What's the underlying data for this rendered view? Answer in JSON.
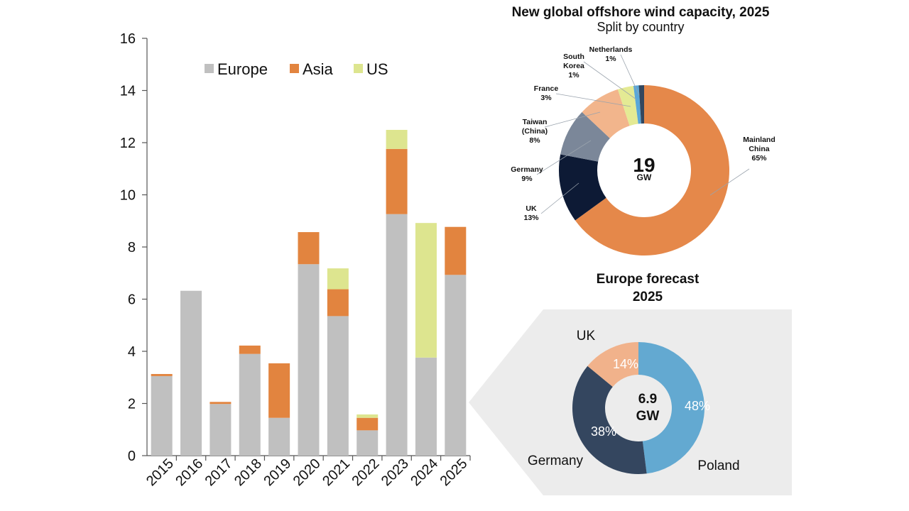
{
  "chart_data": [
    {
      "type": "bar",
      "stacked": true,
      "categories": [
        "2015",
        "2016",
        "2017",
        "2018",
        "2019",
        "2020",
        "2021",
        "2022",
        "2023",
        "2024",
        "2025"
      ],
      "series": [
        {
          "name": "Europe",
          "color": "#c0c0c0",
          "values": [
            3.05,
            6.32,
            1.98,
            3.9,
            1.45,
            7.34,
            5.35,
            0.97,
            9.26,
            3.76,
            6.93
          ]
        },
        {
          "name": "Asia",
          "color": "#e2843f",
          "values": [
            0.08,
            0,
            0.08,
            0.32,
            2.09,
            1.23,
            1.03,
            0.48,
            2.5,
            0,
            1.84
          ]
        },
        {
          "name": "US",
          "color": "#dde58f",
          "values": [
            0,
            0,
            0,
            0,
            0,
            0,
            0.8,
            0.13,
            0.73,
            5.16,
            0
          ]
        }
      ],
      "ylim": [
        0,
        16
      ],
      "yticks": [
        "0",
        "2",
        "4",
        "6",
        "8",
        "10",
        "12",
        "14",
        "16"
      ],
      "legend_position": "top",
      "grid": false
    },
    {
      "type": "pie",
      "title": "New global offshore wind capacity, 2025",
      "subtitle": "Split by country",
      "center_value": "19",
      "center_unit": "GW",
      "slices": [
        {
          "label": "Mainland China",
          "label_lines": [
            "Mainland",
            "China"
          ],
          "pct_text": "65%",
          "value": 65,
          "color": "#e5884a"
        },
        {
          "label": "UK",
          "label_lines": [
            "UK"
          ],
          "pct_text": "13%",
          "value": 13,
          "color": "#0d1a35"
        },
        {
          "label": "Germany",
          "label_lines": [
            "Germany"
          ],
          "pct_text": "9%",
          "value": 9,
          "color": "#7b8799"
        },
        {
          "label": "Taiwan (China)",
          "label_lines": [
            "Taiwan",
            "(China)"
          ],
          "pct_text": "8%",
          "value": 8,
          "color": "#f2b58c"
        },
        {
          "label": "France",
          "label_lines": [
            "France"
          ],
          "pct_text": "3%",
          "value": 3,
          "color": "#e4ea94"
        },
        {
          "label": "South Korea",
          "label_lines": [
            "South",
            "Korea"
          ],
          "pct_text": "1%",
          "value": 1,
          "color": "#5aa7d8"
        },
        {
          "label": "Netherlands",
          "label_lines": [
            "Netherlands"
          ],
          "pct_text": "1%",
          "value": 1,
          "color": "#32475f"
        }
      ]
    },
    {
      "type": "pie",
      "title_lines": [
        "Europe forecast",
        "2025"
      ],
      "center_value": "6.9",
      "center_unit": "GW",
      "slices": [
        {
          "label": "Poland",
          "pct_text": "48%",
          "value": 48,
          "color": "#63a9d1"
        },
        {
          "label": "Germany",
          "pct_text": "38%",
          "value": 38,
          "color": "#34465f"
        },
        {
          "label": "UK",
          "pct_text": "14%",
          "value": 14,
          "color": "#f1b28b"
        }
      ]
    }
  ]
}
